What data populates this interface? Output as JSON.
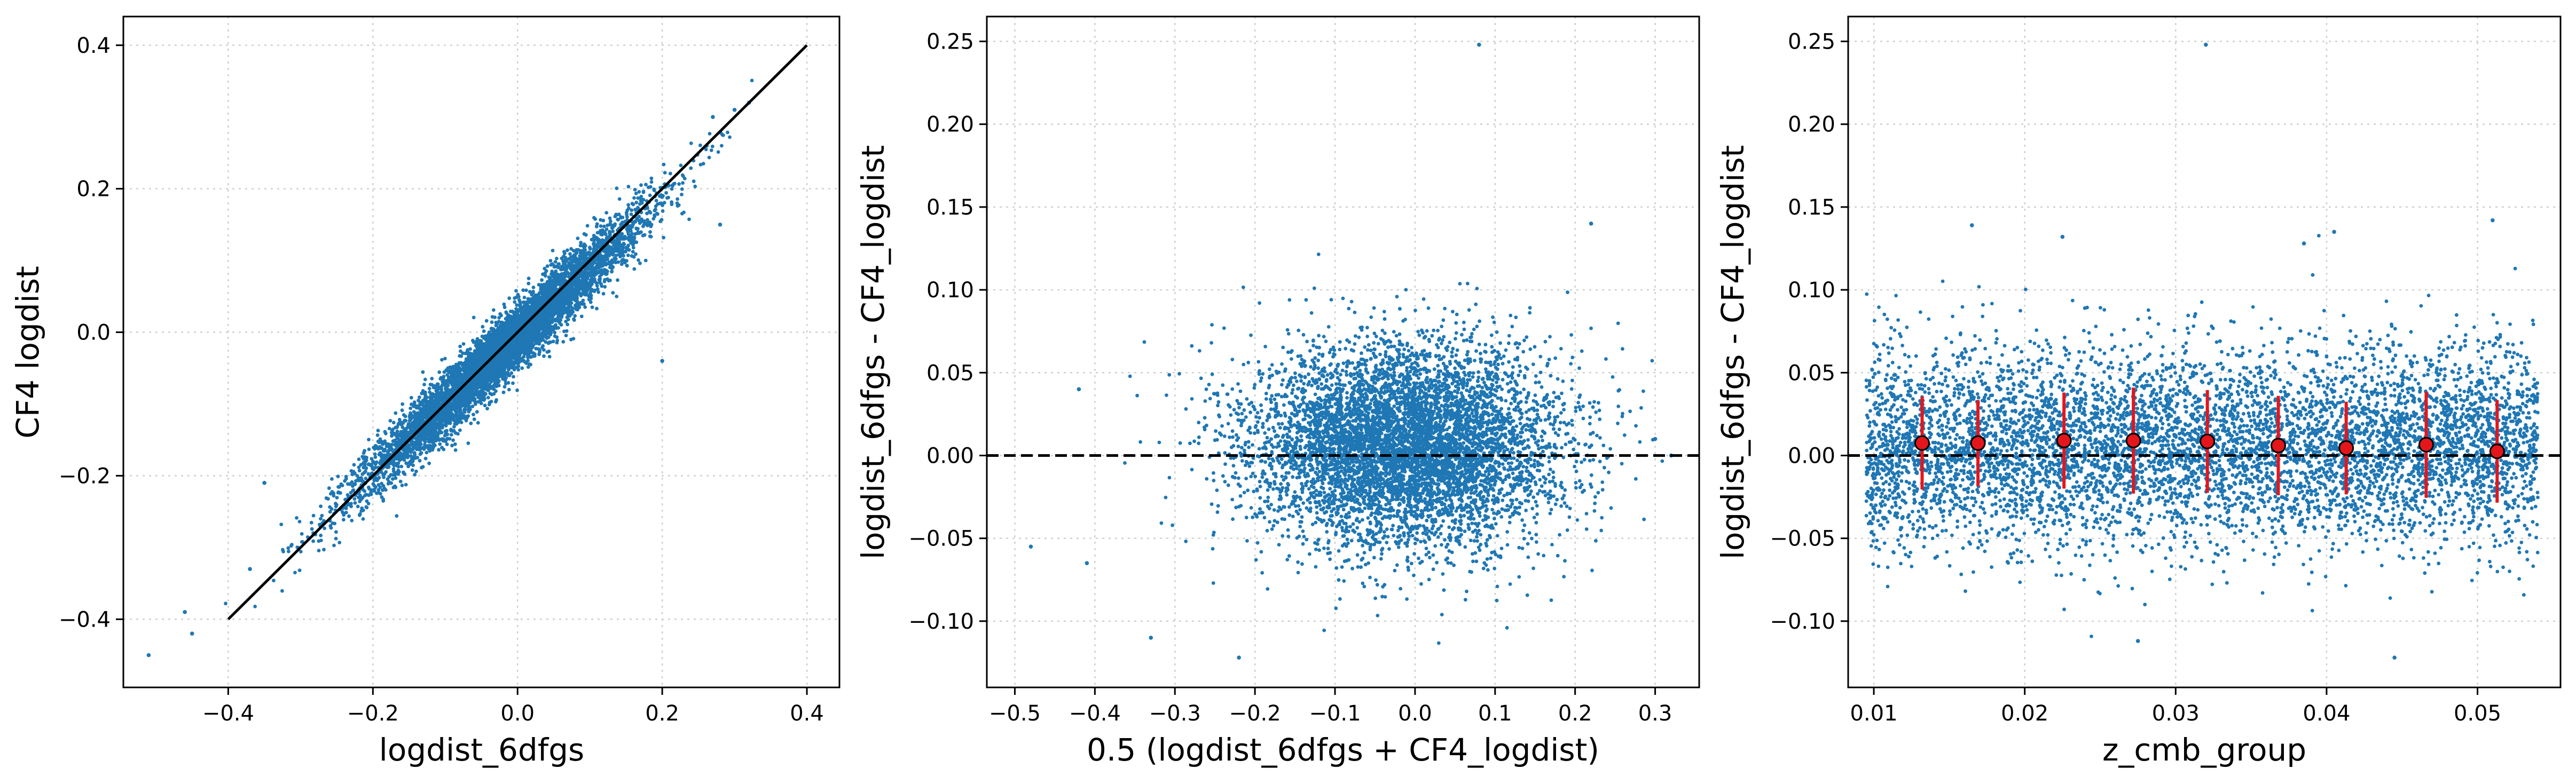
{
  "chart_data": [
    {
      "type": "scatter",
      "xlabel": "logdist_6dfgs",
      "ylabel": "CF4 logdist",
      "xlim": [
        -0.545,
        0.445
      ],
      "ylim": [
        -0.495,
        0.44
      ],
      "xticks": [
        -0.4,
        -0.2,
        0.0,
        0.2,
        0.4
      ],
      "xtick_labels": [
        "−0.4",
        "−0.2",
        "0.0",
        "0.2",
        "0.4"
      ],
      "yticks": [
        -0.4,
        -0.2,
        0.0,
        0.2,
        0.4
      ],
      "ytick_labels": [
        "−0.4",
        "−0.2",
        "0.0",
        "0.2",
        "0.4"
      ],
      "grid": true,
      "series_color": "#1f77b4",
      "scatter": {
        "cloud": "correlated",
        "x_center": -0.02,
        "x_spread": 0.095,
        "slope": 0.95,
        "scatter_sd": 0.022,
        "n": 6500
      },
      "outliers": [
        [
          -0.51,
          -0.45
        ],
        [
          -0.46,
          -0.39
        ],
        [
          -0.45,
          -0.42
        ],
        [
          0.32,
          0.32
        ],
        [
          0.3,
          0.31
        ],
        [
          0.2,
          -0.04
        ],
        [
          0.28,
          0.15
        ],
        [
          0.27,
          0.3
        ],
        [
          -0.35,
          -0.21
        ],
        [
          -0.37,
          -0.33
        ]
      ],
      "reference_line": {
        "x": [
          -0.4,
          0.4
        ],
        "y": [
          -0.4,
          0.4
        ],
        "color": "#000000",
        "style": "solid"
      }
    },
    {
      "type": "scatter",
      "xlabel": "0.5 (logdist_6dfgs + CF4_logdist)",
      "ylabel": "logdist_6dfgs - CF4_logdist",
      "xlim": [
        -0.535,
        0.355
      ],
      "ylim": [
        -0.14,
        0.265
      ],
      "xticks": [
        -0.5,
        -0.4,
        -0.3,
        -0.2,
        -0.1,
        0.0,
        0.1,
        0.2,
        0.3
      ],
      "xtick_labels": [
        "−0.5",
        "−0.4",
        "−0.3",
        "−0.2",
        "−0.1",
        "0.0",
        "0.1",
        "0.2",
        "0.3"
      ],
      "yticks": [
        -0.1,
        -0.05,
        0.0,
        0.05,
        0.1,
        0.15,
        0.2,
        0.25
      ],
      "ytick_labels": [
        "−0.10",
        "−0.05",
        "0.00",
        "0.05",
        "0.10",
        "0.15",
        "0.20",
        "0.25"
      ],
      "grid": true,
      "series_color": "#1f77b4",
      "scatter": {
        "cloud": "gaussian",
        "x_center": -0.01,
        "x_spread": 0.095,
        "y_center": 0.006,
        "y_spread": 0.03,
        "n": 6500
      },
      "outliers": [
        [
          0.08,
          0.248
        ],
        [
          -0.48,
          -0.055
        ],
        [
          -0.41,
          -0.065
        ],
        [
          -0.33,
          -0.11
        ],
        [
          -0.22,
          -0.122
        ],
        [
          0.22,
          0.14
        ],
        [
          0.32,
          0.0
        ],
        [
          -0.42,
          0.04
        ],
        [
          0.3,
          0.01
        ]
      ],
      "reference_line": {
        "y": 0.0,
        "color": "#000000",
        "style": "dashed"
      }
    },
    {
      "type": "scatter",
      "xlabel": "z_cmb_group",
      "ylabel": "logdist_6dfgs - CF4_logdist",
      "xlim": [
        0.0083,
        0.0555
      ],
      "ylim": [
        -0.14,
        0.265
      ],
      "xticks": [
        0.01,
        0.02,
        0.03,
        0.04,
        0.05
      ],
      "xtick_labels": [
        "0.01",
        "0.02",
        "0.03",
        "0.04",
        "0.05"
      ],
      "yticks": [
        -0.1,
        -0.05,
        0.0,
        0.05,
        0.1,
        0.15,
        0.2,
        0.25
      ],
      "ytick_labels": [
        "−0.10",
        "−0.05",
        "0.00",
        "0.05",
        "0.10",
        "0.15",
        "0.20",
        "0.25"
      ],
      "grid": true,
      "series_color": "#1f77b4",
      "scatter": {
        "cloud": "uniform-x",
        "x_range": [
          0.0095,
          0.054
        ],
        "y_center": 0.006,
        "y_spread": 0.03,
        "n": 6500
      },
      "outliers": [
        [
          0.032,
          0.248
        ],
        [
          0.0165,
          0.139
        ],
        [
          0.0445,
          -0.122
        ],
        [
          0.0275,
          -0.112
        ],
        [
          0.051,
          0.142
        ],
        [
          0.0405,
          0.135
        ],
        [
          0.0225,
          0.132
        ],
        [
          0.0385,
          0.128
        ]
      ],
      "reference_line": {
        "y": 0.0,
        "color": "#000000",
        "style": "dashed"
      },
      "binned": {
        "x": [
          0.0132,
          0.0169,
          0.0226,
          0.0272,
          0.0321,
          0.0368,
          0.0413,
          0.0466,
          0.0513
        ],
        "y": [
          0.0075,
          0.0075,
          0.009,
          0.009,
          0.0085,
          0.006,
          0.0045,
          0.0065,
          0.0025
        ],
        "err": [
          0.028,
          0.026,
          0.029,
          0.032,
          0.031,
          0.03,
          0.028,
          0.032,
          0.031
        ],
        "marker_color": "#e3161c",
        "edge_color": "#000000",
        "errbar_color": "#e3161c"
      }
    }
  ]
}
